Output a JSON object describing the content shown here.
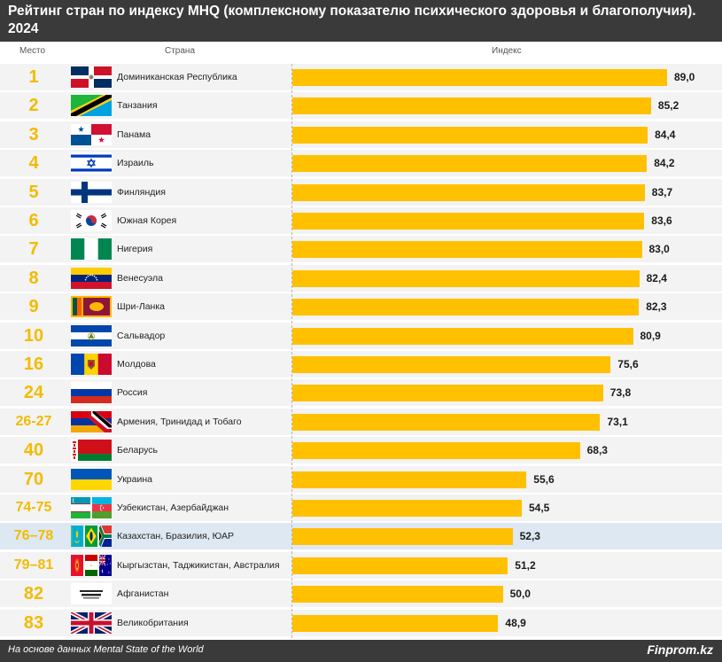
{
  "title": "Рейтинг стран по индексу MHQ (комплексному показателю психического здоровья и благополучия). 2024",
  "column_headers": {
    "rank": "Место",
    "country": "Страна",
    "index": "Индекс"
  },
  "chart_data": {
    "type": "bar",
    "orientation": "horizontal",
    "title": "Рейтинг стран по индексу MHQ (комплексному показателю психического здоровья и благополучия). 2024",
    "xlabel": "Индекс",
    "xlim": [
      0,
      100
    ],
    "grid": false,
    "bar_color": "#ffc000",
    "rank_color": "#f2bb00",
    "highlight_color": "#dde8f3",
    "rows": [
      {
        "rank": "1",
        "country": "Доминиканская Республика",
        "value": 89.0,
        "label": "89,0",
        "flags": [
          "do"
        ]
      },
      {
        "rank": "2",
        "country": "Танзания",
        "value": 85.2,
        "label": "85,2",
        "flags": [
          "tz"
        ]
      },
      {
        "rank": "3",
        "country": "Панама",
        "value": 84.4,
        "label": "84,4",
        "flags": [
          "pa"
        ]
      },
      {
        "rank": "4",
        "country": "Израиль",
        "value": 84.2,
        "label": "84,2",
        "flags": [
          "il"
        ]
      },
      {
        "rank": "5",
        "country": "Финляндия",
        "value": 83.7,
        "label": "83,7",
        "flags": [
          "fi"
        ]
      },
      {
        "rank": "6",
        "country": "Южная Корея",
        "value": 83.6,
        "label": "83,6",
        "flags": [
          "kr"
        ]
      },
      {
        "rank": "7",
        "country": "Нигерия",
        "value": 83.0,
        "label": "83,0",
        "flags": [
          "ng"
        ]
      },
      {
        "rank": "8",
        "country": "Венесуэла",
        "value": 82.4,
        "label": "82,4",
        "flags": [
          "ve"
        ]
      },
      {
        "rank": "9",
        "country": "Шри-Ланка",
        "value": 82.3,
        "label": "82,3",
        "flags": [
          "lk"
        ]
      },
      {
        "rank": "10",
        "country": "Сальвадор",
        "value": 80.9,
        "label": "80,9",
        "flags": [
          "sv"
        ]
      },
      {
        "rank": "16",
        "country": "Молдова",
        "value": 75.6,
        "label": "75,6",
        "flags": [
          "md"
        ]
      },
      {
        "rank": "24",
        "country": "Россия",
        "value": 73.8,
        "label": "73,8",
        "flags": [
          "ru"
        ]
      },
      {
        "rank": "26-27",
        "country": "Армения, Тринидад и Тобаго",
        "value": 73.1,
        "label": "73,1",
        "flags": [
          "am_tt"
        ]
      },
      {
        "rank": "40",
        "country": "Беларусь",
        "value": 68.3,
        "label": "68,3",
        "flags": [
          "by"
        ]
      },
      {
        "rank": "70",
        "country": "Украина",
        "value": 55.6,
        "label": "55,6",
        "flags": [
          "ua"
        ]
      },
      {
        "rank": "74-75",
        "country": "Узбекистан, Азербайджан",
        "value": 54.5,
        "label": "54,5",
        "flags": [
          "uz",
          "az"
        ]
      },
      {
        "rank": "76–78",
        "country": "Казахстан, Бразилия, ЮАР",
        "value": 52.3,
        "label": "52,3",
        "flags": [
          "kz",
          "br",
          "za"
        ],
        "highlight": true
      },
      {
        "rank": "79–81",
        "country": "Кыргызстан, Таджикистан, Австралия",
        "value": 51.2,
        "label": "51,2",
        "flags": [
          "kg",
          "tj",
          "au"
        ]
      },
      {
        "rank": "82",
        "country": "Афганистан",
        "value": 50.0,
        "label": "50,0",
        "flags": [
          "af"
        ]
      },
      {
        "rank": "83",
        "country": "Великобритания",
        "value": 48.9,
        "label": "48,9",
        "flags": [
          "gb"
        ]
      }
    ]
  },
  "footer": {
    "source": "На основе данных Mental State of the World",
    "brand": "Finprom.kz"
  }
}
